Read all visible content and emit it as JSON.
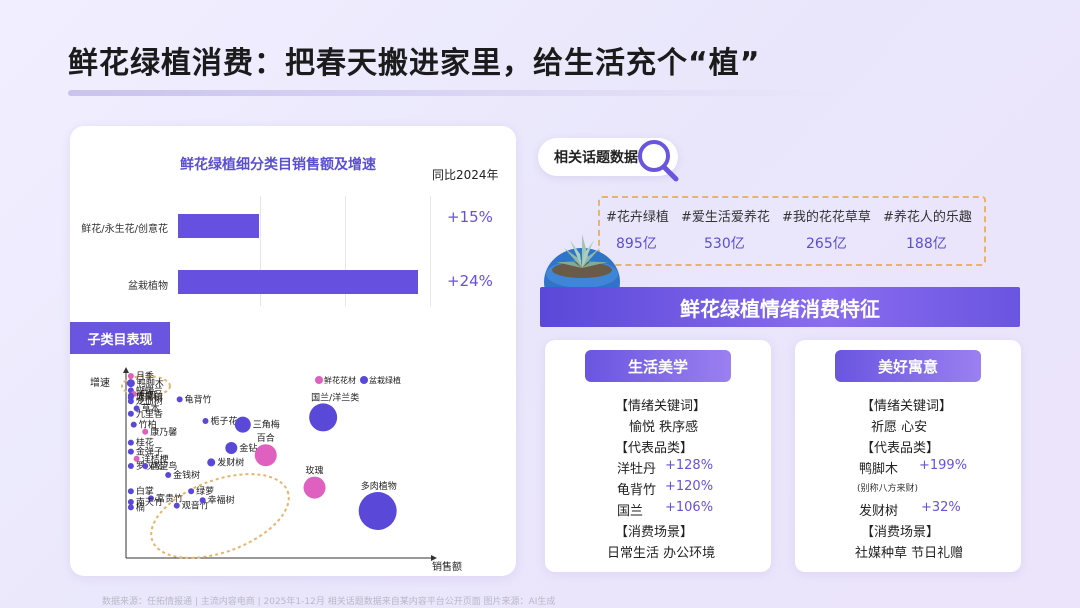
{
  "title": "鲜花绿植消费：把春天搬进家里，给生活充个“植”",
  "chart_data": [
    {
      "type": "bar",
      "title": "鲜花绿植细分类目销售额及增速",
      "yoy_header": "同比2024年",
      "categories": [
        "鲜花/永生花/创意花",
        "盆栽植物"
      ],
      "values": [
        0.27,
        0.8
      ],
      "yoy": [
        "+15%",
        "+24%"
      ]
    },
    {
      "type": "scatter",
      "title": "子类目表现",
      "xlabel": "销售额",
      "ylabel": "增速",
      "legend": [
        "鲜花花材",
        "盆栽绿植"
      ],
      "legend_colors": [
        "#e060c0",
        "#5a48d8"
      ],
      "points": [
        {
          "name": "月季",
          "x": 1,
          "y": 100,
          "r": 3,
          "series": 0
        },
        {
          "name": "鸭脚木",
          "x": 1,
          "y": 96,
          "r": 4,
          "series": 1
        },
        {
          "name": "蝴蝶兰",
          "x": 1,
          "y": 92,
          "r": 3,
          "series": 1
        },
        {
          "name": "石竹",
          "x": 2,
          "y": 90,
          "r": 3,
          "series": 0
        },
        {
          "name": "虎尾兰",
          "x": 1,
          "y": 89,
          "r": 3,
          "series": 1
        },
        {
          "name": "发财树",
          "x": 1,
          "y": 88,
          "r": 3,
          "series": 1
        },
        {
          "name": "龙血树",
          "x": 1,
          "y": 86,
          "r": 3,
          "series": 1
        },
        {
          "name": "草本",
          "x": 3,
          "y": 82,
          "r": 3,
          "series": 1
        },
        {
          "name": "九里香",
          "x": 1,
          "y": 79,
          "r": 3,
          "series": 1
        },
        {
          "name": "竹柏",
          "x": 2,
          "y": 73,
          "r": 3,
          "series": 1
        },
        {
          "name": "康乃馨",
          "x": 6,
          "y": 69,
          "r": 3,
          "series": 0
        },
        {
          "name": "桂花",
          "x": 1,
          "y": 63,
          "r": 3,
          "series": 1
        },
        {
          "name": "金弹子",
          "x": 1,
          "y": 58,
          "r": 3,
          "series": 1
        },
        {
          "name": "洋桔梗",
          "x": 3,
          "y": 54,
          "r": 3,
          "series": 0
        },
        {
          "name": "罗汉松",
          "x": 1,
          "y": 50,
          "r": 3,
          "series": 1
        },
        {
          "name": "鹤望鸟",
          "x": 6,
          "y": 50,
          "r": 3,
          "series": 1
        },
        {
          "name": "白掌",
          "x": 1,
          "y": 36,
          "r": 3,
          "series": 1
        },
        {
          "name": "富贵竹",
          "x": 8,
          "y": 32,
          "r": 3,
          "series": 1
        },
        {
          "name": "南天竹",
          "x": 1,
          "y": 30,
          "r": 3,
          "series": 1
        },
        {
          "name": "楠",
          "x": 1,
          "y": 27,
          "r": 3,
          "series": 1
        },
        {
          "name": "绿萝",
          "x": 22,
          "y": 36,
          "r": 3,
          "series": 1
        },
        {
          "name": "观音竹",
          "x": 17,
          "y": 28,
          "r": 3,
          "series": 1
        },
        {
          "name": "幸福树",
          "x": 26,
          "y": 31,
          "r": 3,
          "series": 1
        },
        {
          "name": "金钱树",
          "x": 14,
          "y": 45,
          "r": 3,
          "series": 1
        },
        {
          "name": "发财树",
          "x": 29,
          "y": 52,
          "r": 4,
          "series": 1
        },
        {
          "name": "金钻",
          "x": 36,
          "y": 60,
          "r": 6,
          "series": 1
        },
        {
          "name": "百合",
          "x": 48,
          "y": 56,
          "r": 11,
          "series": 0
        },
        {
          "name": "龟背竹",
          "x": 18,
          "y": 87,
          "r": 3,
          "series": 1
        },
        {
          "name": "栀子花",
          "x": 27,
          "y": 75,
          "r": 3,
          "series": 1
        },
        {
          "name": "三角梅",
          "x": 40,
          "y": 73,
          "r": 8,
          "series": 1
        },
        {
          "name": "国兰/洋兰类",
          "x": 68,
          "y": 77,
          "r": 14,
          "series": 1
        },
        {
          "name": "玫瑰",
          "x": 65,
          "y": 38,
          "r": 11,
          "series": 0
        },
        {
          "name": "多肉植物",
          "x": 87,
          "y": 25,
          "r": 19,
          "series": 1
        }
      ]
    }
  ],
  "topics": {
    "label": "相关话题数据",
    "items": [
      {
        "name": "#花卉绿植",
        "value": "895亿"
      },
      {
        "name": "#爱生活爱养花",
        "value": "530亿"
      },
      {
        "name": "#我的花花草草",
        "value": "265亿"
      },
      {
        "name": "#养花人的乐趣",
        "value": "188亿"
      }
    ]
  },
  "feature_title": "鲜花绿植情绪消费特征",
  "cards": [
    {
      "head": "生活美学",
      "kw_label": "【情绪关键词】",
      "keywords": "愉悦 秩序感",
      "prod_label": "【代表品类】",
      "products": [
        {
          "name": "洋牡丹",
          "pct": "+128%"
        },
        {
          "name": "龟背竹",
          "pct": "+120%"
        },
        {
          "name": "国兰",
          "pct": "+106%"
        }
      ],
      "scene_label": "【消费场景】",
      "scene": "日常生活 办公环境"
    },
    {
      "head": "美好寓意",
      "kw_label": "【情绪关键词】",
      "keywords": "祈愿 心安",
      "prod_label": "【代表品类】",
      "products": [
        {
          "name": "鸭脚木",
          "pct": "+199%",
          "note": "(别称八方来财)"
        },
        {
          "name": "发财树",
          "pct": "+32%"
        }
      ],
      "scene_label": "【消费场景】",
      "scene": "社媒种草 节日礼赠"
    }
  ],
  "footer": "数据来源：任拓情报通 | 主流内容电商 | 2025年1-12月      相关话题数据来自某内容平台公开页面   图片来源：AI生成"
}
